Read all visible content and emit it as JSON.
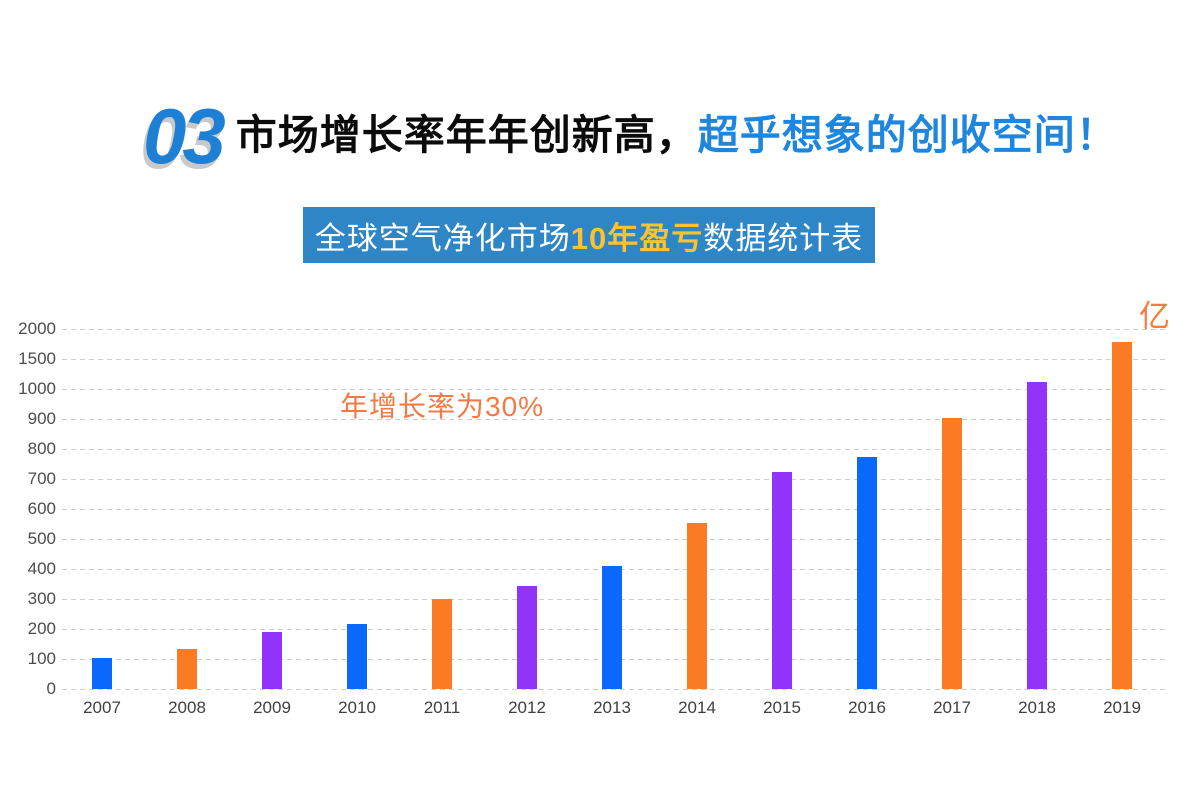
{
  "header": {
    "number": "03",
    "title_black": "市场增长率年年创新高，",
    "title_blue": "超乎想象的创收空间！"
  },
  "banner": {
    "text_before": "全球空气净化市场",
    "text_highlight": "10年盈亏",
    "text_after": "数据统计表",
    "bg_color": "#2e86c7",
    "highlight_color": "#fdc32e",
    "text_color": "#ffffff"
  },
  "chart_data": {
    "type": "bar",
    "title": "全球空气净化市场10年盈亏数据统计表",
    "unit_label": "亿",
    "annotation": "年增长率为30%",
    "categories": [
      "2007",
      "2008",
      "2009",
      "2010",
      "2011",
      "2012",
      "2013",
      "2014",
      "2015",
      "2016",
      "2017",
      "2018",
      "2019"
    ],
    "values": [
      105,
      135,
      190,
      218,
      300,
      345,
      410,
      555,
      725,
      775,
      905,
      1110,
      1790
    ],
    "color_sequence": [
      "blue",
      "orange",
      "purple",
      "blue",
      "orange",
      "purple",
      "blue",
      "orange",
      "purple",
      "blue",
      "orange",
      "purple",
      "orange"
    ],
    "palette": {
      "blue": "#0a68fc",
      "orange": "#fb7a24",
      "purple": "#9233fa"
    },
    "y_ticks": [
      0,
      100,
      200,
      300,
      400,
      500,
      600,
      700,
      800,
      900,
      1000,
      1500,
      2000
    ],
    "y_axis_type": "non-linear, equal pixel spacing per tick",
    "xlabel": "",
    "ylabel": "",
    "grid": true,
    "gridline_style": "dashed",
    "legend": false,
    "annotation_color": "#f47944",
    "unit_label_color": "#fb7a3c"
  }
}
